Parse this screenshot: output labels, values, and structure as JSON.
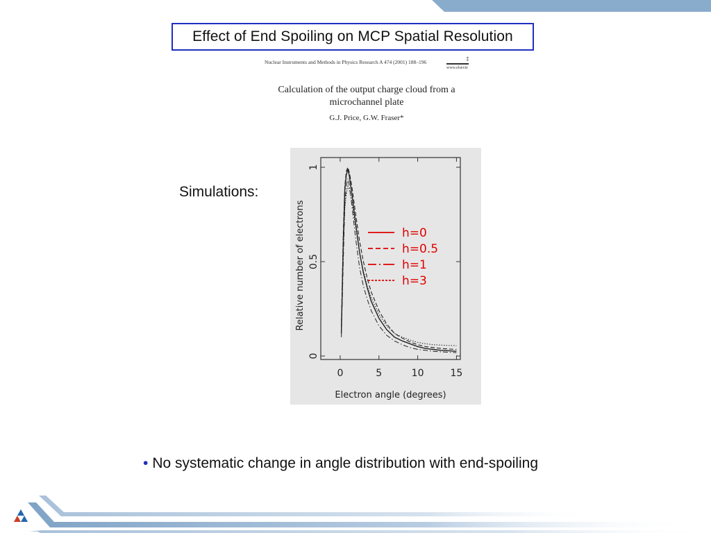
{
  "slide": {
    "title": "Effect of End Spoiling on MCP Spatial Resolution",
    "simulations_label": "Simulations:",
    "bullet_text": "No systematic change in angle distribution with end-spoiling"
  },
  "paper": {
    "journal_line": "Nuclear Instruments and Methods in Physics Research A 474 (2001) 188–196",
    "site": "www.elsevie",
    "title_line1": "Calculation of the output charge cloud from a",
    "title_line2": "microchannel plate",
    "authors": "G.J. Price, G.W. Fraser*"
  },
  "colors": {
    "accent_blue": "#1f2fbf",
    "legend_red": "#e00000",
    "band_blue": "#8aaccc",
    "plot_bg": "#e6e6e6"
  },
  "chart_data": {
    "type": "line",
    "xlabel": "Electron angle (degrees)",
    "ylabel": "Relative number of electrons",
    "xlim": [
      -2.5,
      15.5
    ],
    "ylim": [
      0,
      1.0
    ],
    "x_ticks": [
      0,
      5,
      10,
      15
    ],
    "y_ticks": [
      0,
      0.5,
      1
    ],
    "grid": false,
    "legend_position": "center-right",
    "series": [
      {
        "name": "h=0",
        "dash": "solid",
        "points": [
          [
            0.15,
            0.12
          ],
          [
            0.4,
            0.6
          ],
          [
            0.6,
            0.88
          ],
          [
            0.8,
            0.96
          ],
          [
            1.0,
            0.99
          ],
          [
            1.2,
            0.95
          ],
          [
            1.5,
            0.86
          ],
          [
            2.0,
            0.7
          ],
          [
            2.5,
            0.55
          ],
          [
            3.0,
            0.44
          ],
          [
            3.5,
            0.36
          ],
          [
            4.0,
            0.29
          ],
          [
            5.0,
            0.2
          ],
          [
            6.0,
            0.14
          ],
          [
            7.0,
            0.1
          ],
          [
            8.0,
            0.08
          ],
          [
            9.0,
            0.065
          ],
          [
            10.0,
            0.05
          ],
          [
            11.0,
            0.04
          ],
          [
            12.0,
            0.035
          ],
          [
            13.0,
            0.03
          ],
          [
            14.0,
            0.028
          ],
          [
            15.0,
            0.025
          ]
        ]
      },
      {
        "name": "h=0.5",
        "dash": "dashed",
        "points": [
          [
            0.15,
            0.15
          ],
          [
            0.4,
            0.65
          ],
          [
            0.6,
            0.9
          ],
          [
            0.8,
            0.98
          ],
          [
            1.0,
            1.0
          ],
          [
            1.2,
            0.97
          ],
          [
            1.5,
            0.9
          ],
          [
            2.0,
            0.75
          ],
          [
            2.5,
            0.61
          ],
          [
            3.0,
            0.5
          ],
          [
            3.5,
            0.41
          ],
          [
            4.0,
            0.34
          ],
          [
            5.0,
            0.24
          ],
          [
            6.0,
            0.17
          ],
          [
            7.0,
            0.12
          ],
          [
            8.0,
            0.095
          ],
          [
            9.0,
            0.075
          ],
          [
            10.0,
            0.06
          ],
          [
            11.0,
            0.05
          ],
          [
            12.0,
            0.045
          ],
          [
            13.0,
            0.04
          ],
          [
            14.0,
            0.037
          ],
          [
            15.0,
            0.035
          ]
        ]
      },
      {
        "name": "h=1",
        "dash": "dash-dot",
        "points": [
          [
            0.15,
            0.1
          ],
          [
            0.4,
            0.5
          ],
          [
            0.6,
            0.8
          ],
          [
            0.8,
            0.9
          ],
          [
            1.0,
            0.94
          ],
          [
            1.2,
            0.9
          ],
          [
            1.5,
            0.8
          ],
          [
            2.0,
            0.62
          ],
          [
            2.5,
            0.47
          ],
          [
            3.0,
            0.37
          ],
          [
            3.5,
            0.3
          ],
          [
            4.0,
            0.24
          ],
          [
            5.0,
            0.16
          ],
          [
            6.0,
            0.11
          ],
          [
            7.0,
            0.08
          ],
          [
            8.0,
            0.06
          ],
          [
            9.0,
            0.045
          ],
          [
            10.0,
            0.035
          ],
          [
            11.0,
            0.03
          ],
          [
            12.0,
            0.025
          ],
          [
            13.0,
            0.022
          ],
          [
            14.0,
            0.02
          ],
          [
            15.0,
            0.018
          ]
        ]
      },
      {
        "name": "h=3",
        "dash": "dotted",
        "points": [
          [
            0.15,
            0.14
          ],
          [
            0.4,
            0.55
          ],
          [
            0.6,
            0.78
          ],
          [
            0.8,
            0.86
          ],
          [
            1.0,
            0.9
          ],
          [
            1.2,
            0.88
          ],
          [
            1.5,
            0.82
          ],
          [
            2.0,
            0.68
          ],
          [
            2.5,
            0.55
          ],
          [
            3.0,
            0.45
          ],
          [
            3.5,
            0.37
          ],
          [
            4.0,
            0.31
          ],
          [
            5.0,
            0.22
          ],
          [
            6.0,
            0.16
          ],
          [
            7.0,
            0.12
          ],
          [
            8.0,
            0.1
          ],
          [
            9.0,
            0.085
          ],
          [
            10.0,
            0.072
          ],
          [
            11.0,
            0.065
          ],
          [
            12.0,
            0.06
          ],
          [
            13.0,
            0.058
          ],
          [
            14.0,
            0.056
          ],
          [
            15.0,
            0.055
          ]
        ]
      }
    ]
  }
}
